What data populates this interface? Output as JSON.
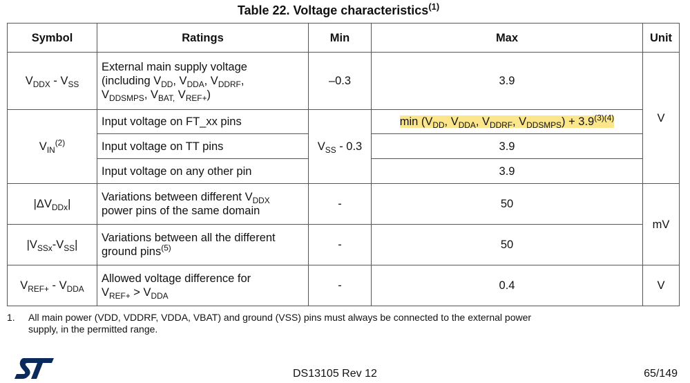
{
  "title": [
    "Table 22. Voltage characteristics",
    {
      "sup": "(1)"
    }
  ],
  "table": {
    "header": [
      "Symbol",
      "Ratings",
      "Min",
      "Max",
      "Unit"
    ],
    "rows": [
      {
        "symbol": [
          "V",
          {
            "sub": "DDX"
          },
          " - V",
          {
            "sub": "SS"
          }
        ],
        "rating": [
          [
            "External main supply voltage"
          ],
          [
            "(including V",
            {
              "sub": "DD"
            },
            ", V",
            {
              "sub": "DDA"
            },
            ", V",
            {
              "sub": "DDRF"
            },
            ","
          ],
          [
            "V",
            {
              "sub": "DDSMPS"
            },
            ", V",
            {
              "sub": "BAT,"
            },
            " V",
            {
              "sub": "REF+"
            },
            ")"
          ]
        ],
        "min": "–0.3",
        "max": "3.9",
        "unit": "V"
      },
      {
        "symbol": [
          "V",
          {
            "sub": "IN"
          },
          {
            "sup": "(2)"
          }
        ],
        "rating": "Input voltage on FT_xx pins",
        "min": [
          "V",
          {
            "sub": "SS"
          },
          " - 0.3"
        ],
        "max": [
          "min (V",
          {
            "sub": "DD"
          },
          ", V",
          {
            "sub": "DDA"
          },
          ", V",
          {
            "sub": "DDRF"
          },
          ", V",
          {
            "sub": "DDSMPS"
          },
          ") + 3.9",
          {
            "sup": "(3)(4)"
          }
        ]
      },
      {
        "rating": "Input voltage on TT pins",
        "max": "3.9"
      },
      {
        "rating": "Input voltage on any other pin",
        "max": "3.9"
      },
      {
        "symbol": [
          "|ΔV",
          {
            "sub": "DDx"
          },
          "|"
        ],
        "rating": [
          [
            "Variations between different V",
            {
              "sub": "DDX"
            }
          ],
          [
            "power pins of the same domain"
          ]
        ],
        "min": "-",
        "max": "50",
        "unit": "mV"
      },
      {
        "symbol": [
          "|V",
          {
            "sub": "SSx"
          },
          "-V",
          {
            "sub": "SS"
          },
          "|"
        ],
        "rating": [
          [
            "Variations between all the different"
          ],
          [
            "ground pins",
            {
              "sup": "(5)"
            }
          ]
        ],
        "min": "-",
        "max": "50"
      },
      {
        "symbol": [
          "V",
          {
            "sub": "REF+"
          },
          " - V",
          {
            "sub": "DDA"
          }
        ],
        "rating": [
          [
            "Allowed voltage difference for"
          ],
          [
            "V",
            {
              "sub": "REF+"
            },
            " > V",
            {
              "sub": "DDA"
            }
          ]
        ],
        "min": "-",
        "max": "0.4",
        "unit": "V"
      }
    ]
  },
  "footnote": {
    "number": "1.",
    "text": [
      [
        "All main power (VDD, VDDRF, VDDA, VBAT) and ground (VSS) pins must always be connected to the external power"
      ],
      [
        "supply, in the permitted range."
      ]
    ]
  },
  "footer": {
    "doc": "DS13105 Rev 12",
    "page": "65/149"
  }
}
